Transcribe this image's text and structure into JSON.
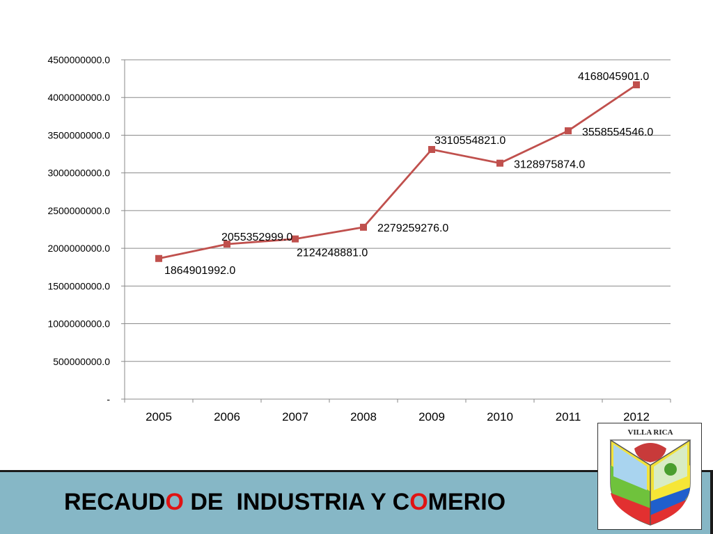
{
  "chart_data": {
    "type": "line",
    "categories": [
      "2005",
      "2006",
      "2007",
      "2008",
      "2009",
      "2010",
      "2011",
      "2012"
    ],
    "series": [
      {
        "values": [
          1864901992.0,
          2055352999.0,
          2124248881.0,
          2279259276.0,
          3310554821.0,
          3128975874.0,
          3558554546.0,
          4168045901.0
        ],
        "data_labels": [
          "1864901992.0",
          "2055352999.0",
          "2124248881.0",
          "2279259276.0",
          "3310554821.0",
          "3128975874.0",
          "3558554546.0",
          "4168045901.0"
        ],
        "color": "#c0504d"
      }
    ],
    "ylim": [
      0,
      4500000000
    ],
    "yticks": [
      0,
      500000000,
      1000000000,
      1500000000,
      2000000000,
      2500000000,
      3000000000,
      3500000000,
      4000000000,
      4500000000
    ],
    "ytick_labels": [
      "-",
      "500000000.0",
      "1000000000.0",
      "1500000000.0",
      "2000000000.0",
      "2500000000.0",
      "3000000000.0",
      "3500000000.0",
      "4000000000.0",
      "4500000000.0"
    ],
    "grid": true,
    "legend": "none"
  },
  "slide": {
    "title_part1": "RECAUD",
    "title_accent1": "O",
    "title_part2": " DE  INDUSTRIA Y C",
    "title_accent2": "O",
    "title_part3": "MERIO",
    "title_color": "#000000",
    "accent_color": "#e01313",
    "band_color": "#86b7c6"
  },
  "logo": {
    "text": "VILLA RICA"
  }
}
